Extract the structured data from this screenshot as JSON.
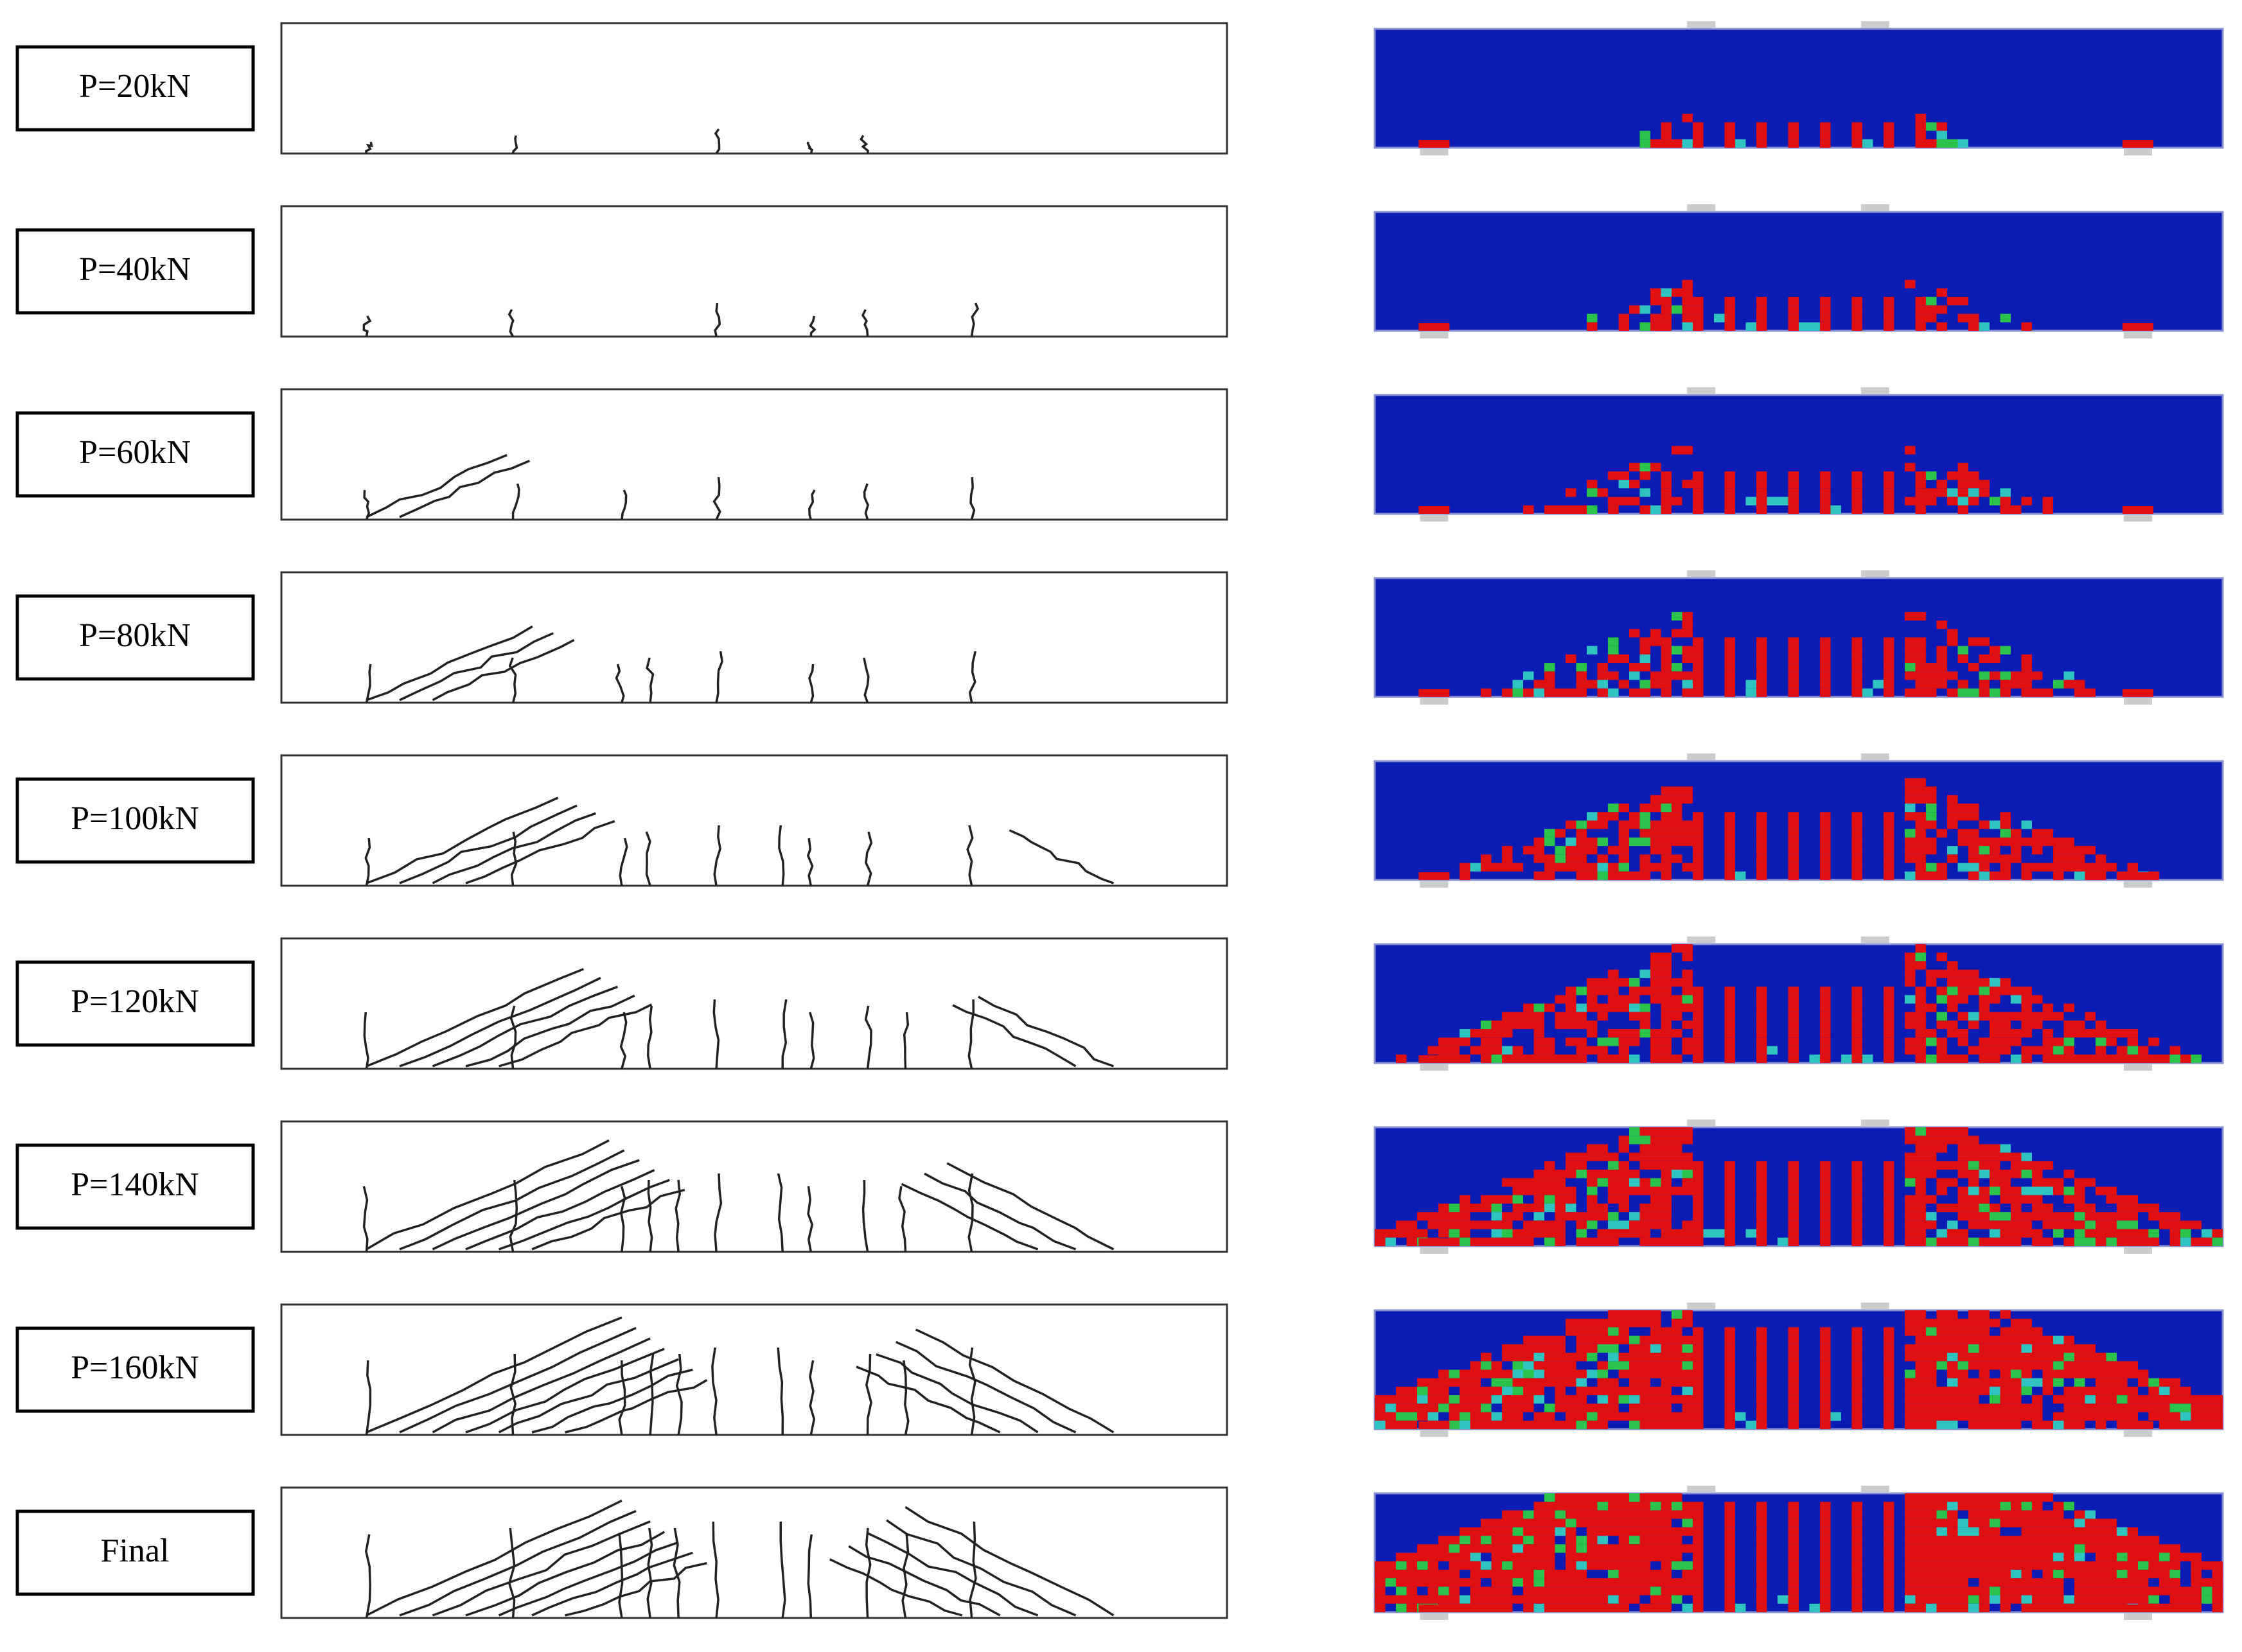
{
  "labels": [
    "P=20kN",
    "P=40kN",
    "P=60kN",
    "P=80kN",
    "P=100kN",
    "P=120kN",
    "P=140kN",
    "P=160kN",
    "Final"
  ]
}
